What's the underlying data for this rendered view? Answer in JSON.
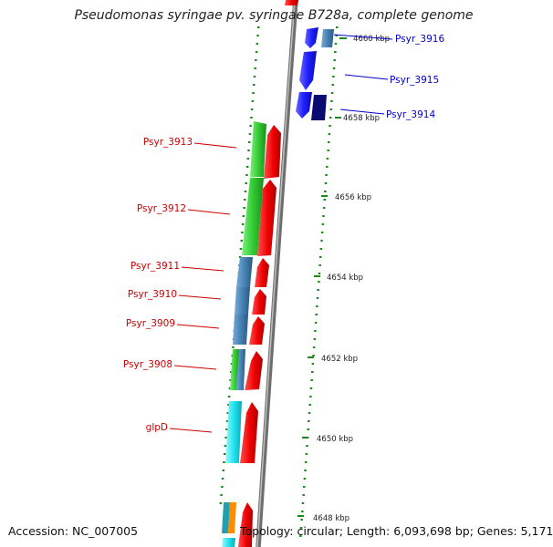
{
  "title": "Pseudomonas syringae pv. syringae B728a, complete genome",
  "footer": {
    "accession": "Accession: NC_007005",
    "info": "Topology: circular; Length: 6,093,698 bp; Genes: 5,171"
  },
  "colors": {
    "backbone": "#8c8c8c",
    "tick_green": "#1a8a1a",
    "forward_gene": "#ff0000",
    "label_top": "#0000cc",
    "label_left": "#cc0000",
    "blue": "#1f1fff",
    "navy": "#0a0a70",
    "steelblue": "#4682b4",
    "green": "#33cc33",
    "cyan": "#22e5f0",
    "teal": "#20a0b0",
    "orange": "#ff8c00"
  },
  "tick_labels": [
    "4660 kbp",
    "4658 kbp",
    "4656 kbp",
    "4654 kbp",
    "4652 kbp",
    "4650 kbp",
    "4648 kbp"
  ],
  "gene_labels_top": [
    "Psyr_3916",
    "Psyr_3915",
    "Psyr_3914"
  ],
  "gene_labels_left": [
    "Psyr_3913",
    "Psyr_3912",
    "Psyr_3911",
    "Psyr_3910",
    "Psyr_3909",
    "Psyr_3908",
    "glpD"
  ]
}
